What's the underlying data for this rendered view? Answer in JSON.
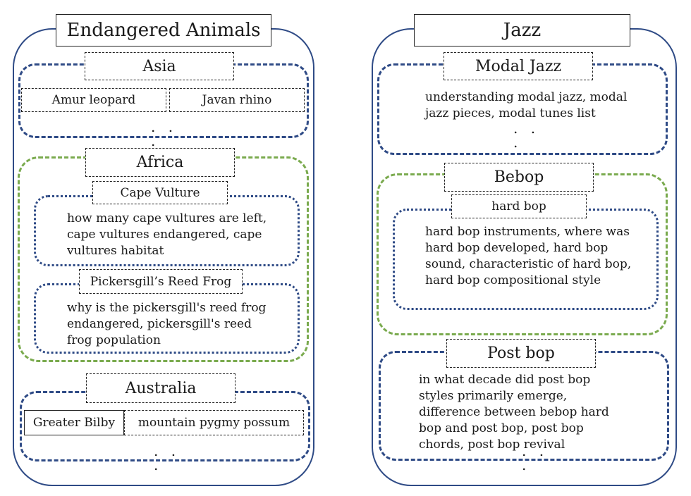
{
  "left": {
    "title": "Endangered Animals",
    "asia": {
      "label": "Asia",
      "items": [
        "Amur leopard",
        "Javan rhino"
      ],
      "ellipsis": ". . ."
    },
    "africa": {
      "label": "Africa",
      "cape": {
        "label": "Cape Vulture",
        "text": "how many cape vultures are left, cape vultures endangered, cape vultures habitat"
      },
      "frog": {
        "label": "Pickersgill’s Reed Frog",
        "text": "why is the pickersgill's reed frog endangered, pickersgill's reed frog population"
      }
    },
    "australia": {
      "label": "Australia",
      "items": [
        "Greater Bilby",
        "mountain pygmy possum"
      ],
      "ellipsis": ". . ."
    }
  },
  "right": {
    "title": "Jazz",
    "modal": {
      "label": "Modal Jazz",
      "text": "understanding modal jazz, modal jazz pieces, modal tunes list",
      "ellipsis": ". . ."
    },
    "bebop": {
      "label": "Bebop",
      "hard": {
        "label": "hard bop",
        "text": "hard bop instruments, where was hard bop developed, hard bop sound, characteristic of hard bop, hard bop compositional style"
      }
    },
    "postbop": {
      "label": "Post bop",
      "text": "in what decade did post bop styles primarily emerge, difference between bebop hard bop and post bop, post bop chords, post bop revival",
      "ellipsis": ". . ."
    }
  },
  "colors": {
    "blue": "#2f4b86",
    "green": "#7aaa4e"
  }
}
